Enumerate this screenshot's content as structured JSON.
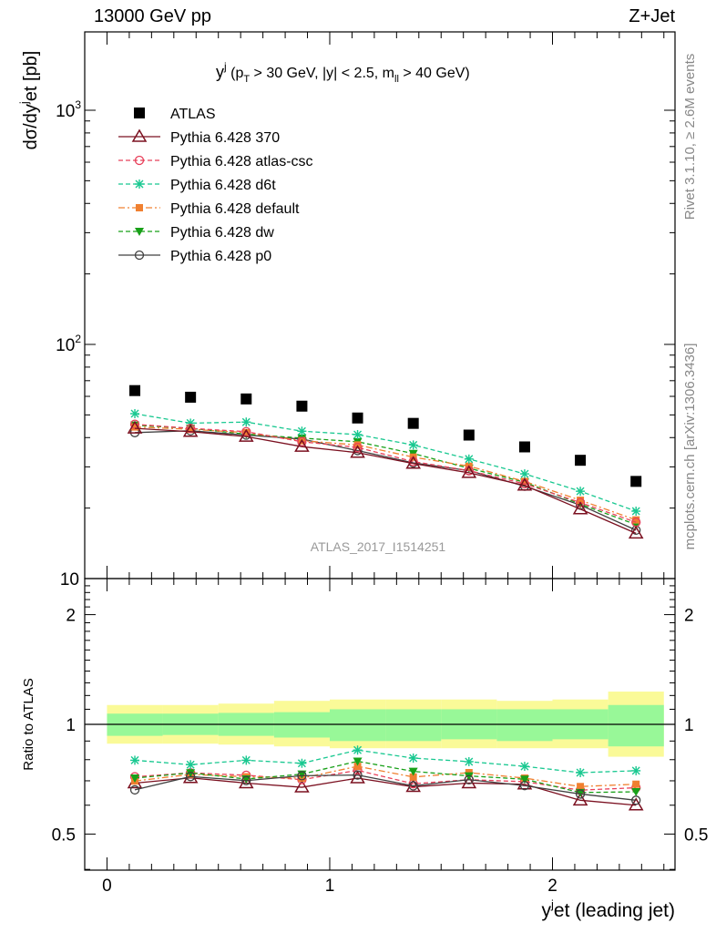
{
  "header": {
    "left": "13000 GeV pp",
    "right": "Z+Jet"
  },
  "side_labels": {
    "rivet": "Rivet 3.1.10, ≥ 2.6M events",
    "mcplots": "mcplots.cern.ch [arXiv:1306.3436]"
  },
  "plot_title": {
    "main": "y",
    "sup": "j",
    "cut_open": " (p",
    "cut_sub": "T",
    "cut_mid": " > 30 GeV, |y| < 2.5, m",
    "cut_sub2": "ll",
    "cut_end": " > 40 GeV)"
  },
  "analysis_id": "ATLAS_2017_I1514251",
  "colors": {
    "atlas": "#000000",
    "p370": "#7b1020",
    "atlas_csc": "#e8405a",
    "d6t": "#18c890",
    "default": "#f08030",
    "dw": "#18a018",
    "p0": "#404040",
    "band_inner": "#98f898",
    "band_outer": "#fafa98"
  },
  "chart_data": [
    {
      "type": "scatter",
      "panel": "main",
      "yscale": "log",
      "ylabel": "dσ/dy^{j}et [pb]",
      "ylim": [
        10,
        2000
      ],
      "xlim": [
        -0.1,
        2.55
      ],
      "y_ticks": [
        {
          "value": 10,
          "label": "10"
        },
        {
          "value": 100,
          "label": "10",
          "sup": "2"
        },
        {
          "value": 1000,
          "label": "10",
          "sup": "3"
        }
      ],
      "x": [
        0.125,
        0.375,
        0.625,
        0.875,
        1.125,
        1.375,
        1.625,
        1.875,
        2.125,
        2.375
      ],
      "bin_edges": [
        0.0,
        0.25,
        0.5,
        0.75,
        1.0,
        1.25,
        1.5,
        1.75,
        2.0,
        2.25,
        2.5
      ],
      "series": [
        {
          "key": "atlas",
          "name": "ATLAS",
          "marker": "square",
          "line": "none",
          "values": [
            63.5,
            59.5,
            58.5,
            54.5,
            48.5,
            46.0,
            41.0,
            36.5,
            32.0,
            26.0
          ]
        },
        {
          "key": "p370",
          "name": "Pythia 6.428 370",
          "marker": "triangle-open",
          "line": "solid",
          "values": [
            43.8,
            42.4,
            40.4,
            36.6,
            34.5,
            31.0,
            28.3,
            25.0,
            19.8,
            15.6
          ]
        },
        {
          "key": "atlas_csc",
          "name": "Pythia 6.428 atlas-csc",
          "marker": "circle-open",
          "line": "dashed",
          "values": [
            45.6,
            43.8,
            42.4,
            38.4,
            36.3,
            31.6,
            28.9,
            25.4,
            21.1,
            17.4
          ]
        },
        {
          "key": "d6t",
          "name": "Pythia 6.428 d6t",
          "marker": "star",
          "line": "dashed",
          "values": [
            50.6,
            46.1,
            46.6,
            42.6,
            41.2,
            37.2,
            32.4,
            28.0,
            23.6,
            19.4
          ]
        },
        {
          "key": "default",
          "name": "Pythia 6.428 default",
          "marker": "square-filled",
          "line": "dashdot",
          "values": [
            44.4,
            43.4,
            42.0,
            38.8,
            37.2,
            33.0,
            30.2,
            26.0,
            21.6,
            17.8
          ]
        },
        {
          "key": "dw",
          "name": "Pythia 6.428 dw",
          "marker": "triangle-down",
          "line": "dashed",
          "values": [
            45.2,
            43.8,
            41.4,
            39.8,
            38.4,
            34.2,
            29.6,
            25.8,
            20.8,
            17.0
          ]
        },
        {
          "key": "p0",
          "name": "Pythia 6.428 p0",
          "marker": "circle-open",
          "line": "solid",
          "values": [
            42.0,
            42.8,
            41.0,
            39.4,
            35.2,
            31.2,
            28.9,
            24.8,
            20.6,
            16.1
          ]
        }
      ]
    },
    {
      "type": "scatter",
      "panel": "ratio",
      "yscale": "log",
      "ylabel": "Ratio to ATLAS",
      "xlabel": "y^{j}et (leading jet)",
      "ylim": [
        0.4,
        2.5
      ],
      "xlim": [
        -0.1,
        2.55
      ],
      "x_ticks": [
        0,
        1,
        2
      ],
      "y_ticks": [
        0.5,
        1,
        2
      ],
      "x": [
        0.125,
        0.375,
        0.625,
        0.875,
        1.125,
        1.375,
        1.625,
        1.875,
        2.125,
        2.375
      ],
      "bin_edges": [
        0.0,
        0.25,
        0.5,
        0.75,
        1.0,
        1.25,
        1.5,
        1.75,
        2.0,
        2.25,
        2.5
      ],
      "band_inner": [
        [
          0.93,
          1.07
        ],
        [
          0.935,
          1.07
        ],
        [
          0.93,
          1.075
        ],
        [
          0.92,
          1.08
        ],
        [
          0.9,
          1.1
        ],
        [
          0.9,
          1.1
        ],
        [
          0.91,
          1.1
        ],
        [
          0.9,
          1.1
        ],
        [
          0.91,
          1.1
        ],
        [
          0.87,
          1.13
        ]
      ],
      "band_outer": [
        [
          0.885,
          1.13
        ],
        [
          0.885,
          1.13
        ],
        [
          0.88,
          1.14
        ],
        [
          0.87,
          1.16
        ],
        [
          0.86,
          1.17
        ],
        [
          0.86,
          1.17
        ],
        [
          0.86,
          1.17
        ],
        [
          0.86,
          1.16
        ],
        [
          0.86,
          1.17
        ],
        [
          0.815,
          1.23
        ]
      ],
      "series": [
        {
          "key": "p370",
          "values": [
            0.69,
            0.713,
            0.69,
            0.672,
            0.712,
            0.674,
            0.69,
            0.685,
            0.619,
            0.6
          ]
        },
        {
          "key": "atlas_csc",
          "values": [
            0.718,
            0.736,
            0.725,
            0.705,
            0.748,
            0.687,
            0.705,
            0.696,
            0.66,
            0.67
          ]
        },
        {
          "key": "d6t",
          "values": [
            0.797,
            0.775,
            0.797,
            0.782,
            0.85,
            0.808,
            0.79,
            0.767,
            0.737,
            0.746
          ]
        },
        {
          "key": "default",
          "values": [
            0.699,
            0.729,
            0.718,
            0.712,
            0.767,
            0.717,
            0.737,
            0.712,
            0.675,
            0.685
          ]
        },
        {
          "key": "dw",
          "values": [
            0.712,
            0.736,
            0.708,
            0.73,
            0.792,
            0.743,
            0.722,
            0.707,
            0.65,
            0.653
          ]
        },
        {
          "key": "p0",
          "values": [
            0.661,
            0.719,
            0.701,
            0.723,
            0.726,
            0.678,
            0.705,
            0.679,
            0.644,
            0.619
          ]
        }
      ]
    }
  ]
}
